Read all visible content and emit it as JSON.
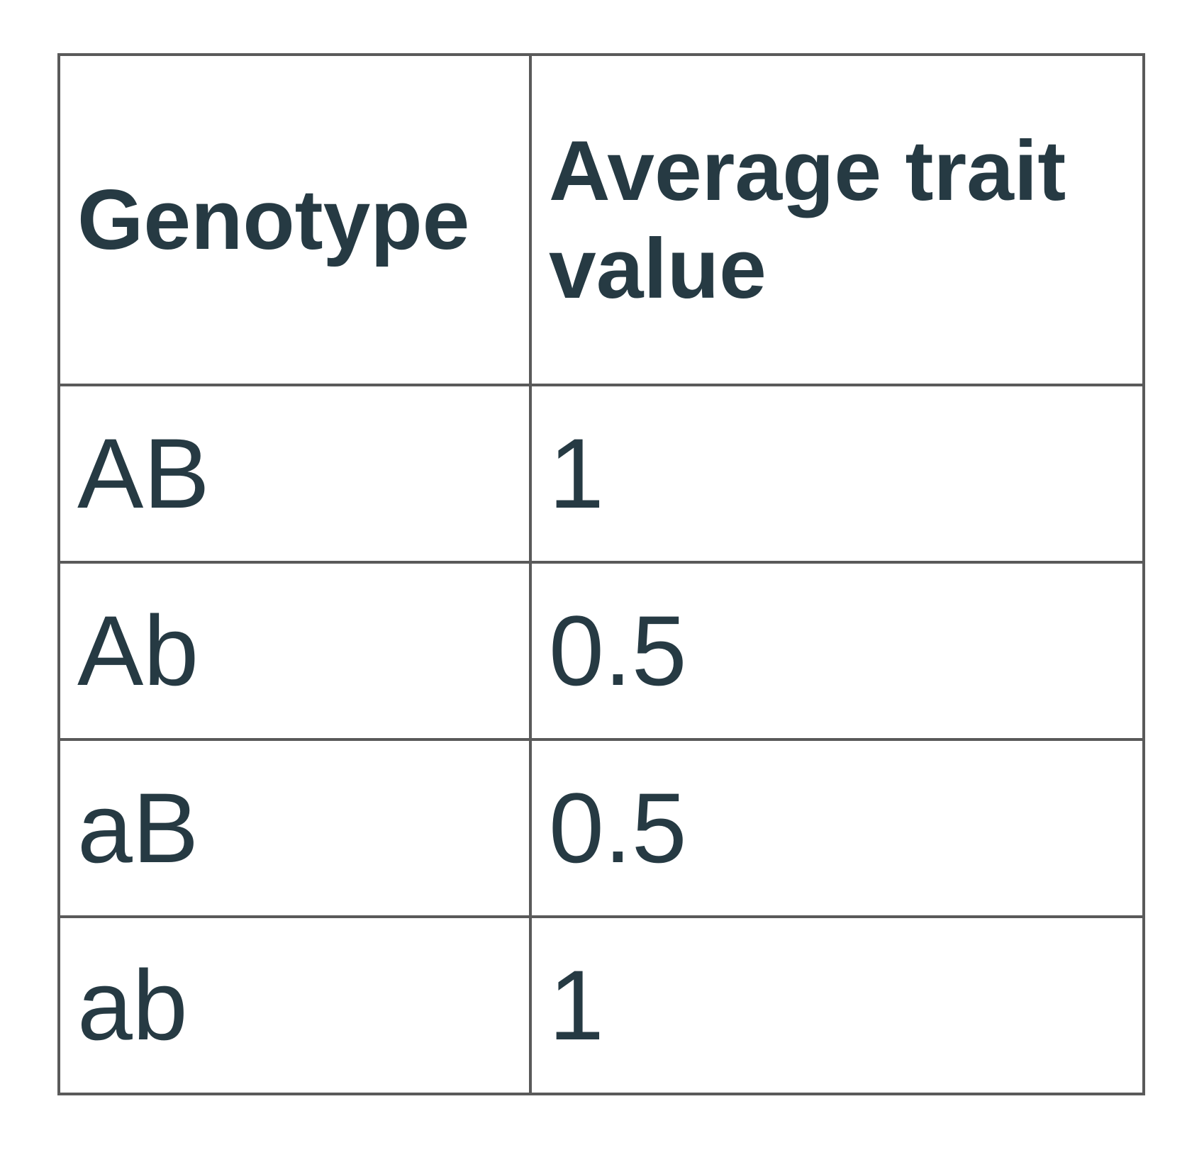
{
  "table": {
    "header": [
      "Genotype",
      "Average trait value"
    ],
    "rows": [
      [
        "AB",
        1
      ],
      [
        "Ab",
        0.5
      ],
      [
        "aB",
        0.5
      ],
      [
        "ab",
        1
      ]
    ]
  }
}
